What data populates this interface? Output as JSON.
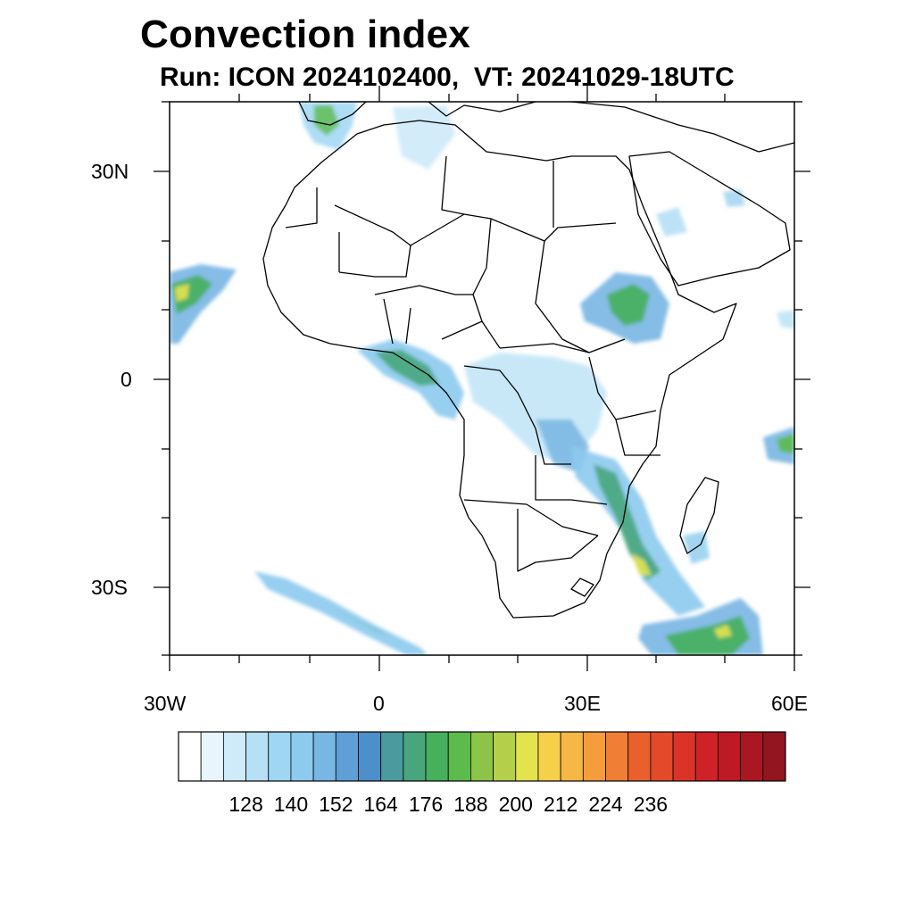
{
  "title": "Convection index",
  "subtitle": "Run: ICON 2024102400,  VT: 20241029-18UTC",
  "axes": {
    "lat_labels": [
      "30N",
      "0",
      "30S"
    ],
    "lon_labels": [
      "30W",
      "0",
      "30E",
      "60E"
    ],
    "lon_range": [
      -30,
      60
    ],
    "lat_range": [
      -40,
      40
    ]
  },
  "colorbar": {
    "tick_labels": [
      "128",
      "140",
      "152",
      "164",
      "176",
      "188",
      "200",
      "212",
      "224",
      "236"
    ],
    "colors": [
      "#ffffff",
      "#e8f5fc",
      "#cfeaf8",
      "#b6e0f5",
      "#9fd6f3",
      "#8ccaee",
      "#78b6e3",
      "#5f9fd6",
      "#4d8fc8",
      "#4a9a9e",
      "#48a67d",
      "#46b05c",
      "#5cbb4a",
      "#8cc44a",
      "#b4d04a",
      "#e3e34f",
      "#f6cf4b",
      "#f6b845",
      "#f59c3c",
      "#f07e34",
      "#e9602d",
      "#e24a2a",
      "#dc3329",
      "#cf2228",
      "#be1a25",
      "#aa1722",
      "#921520"
    ]
  }
}
